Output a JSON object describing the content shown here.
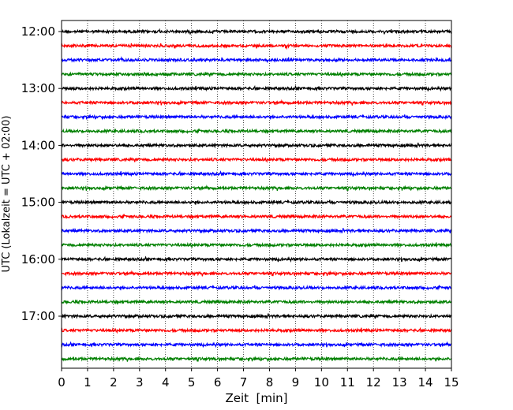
{
  "chart_data": {
    "type": "line",
    "title": "",
    "xlabel": "Zeit  [min]",
    "ylabel": "UTC (Lokalzeit = UTC + 02:00)",
    "xlim": [
      0,
      15
    ],
    "x_ticks": [
      "0",
      "1",
      "2",
      "3",
      "4",
      "5",
      "6",
      "7",
      "8",
      "9",
      "10",
      "11",
      "12",
      "13",
      "14",
      "15"
    ],
    "y_ticks": [
      "12:00",
      "13:00",
      "14:00",
      "15:00",
      "16:00",
      "17:00"
    ],
    "grid": "vertical dotted at each minute",
    "trace_colors": [
      "#000000",
      "#ff0000",
      "#0000ff",
      "#008000"
    ],
    "traces": [
      {
        "start": "12:00",
        "color": "#000000"
      },
      {
        "start": "12:15",
        "color": "#ff0000"
      },
      {
        "start": "12:30",
        "color": "#0000ff"
      },
      {
        "start": "12:45",
        "color": "#008000"
      },
      {
        "start": "13:00",
        "color": "#000000"
      },
      {
        "start": "13:15",
        "color": "#ff0000"
      },
      {
        "start": "13:30",
        "color": "#0000ff"
      },
      {
        "start": "13:45",
        "color": "#008000"
      },
      {
        "start": "14:00",
        "color": "#000000"
      },
      {
        "start": "14:15",
        "color": "#ff0000"
      },
      {
        "start": "14:30",
        "color": "#0000ff"
      },
      {
        "start": "14:45",
        "color": "#008000"
      },
      {
        "start": "15:00",
        "color": "#000000"
      },
      {
        "start": "15:15",
        "color": "#ff0000"
      },
      {
        "start": "15:30",
        "color": "#0000ff"
      },
      {
        "start": "15:45",
        "color": "#008000"
      },
      {
        "start": "16:00",
        "color": "#000000"
      },
      {
        "start": "16:15",
        "color": "#ff0000"
      },
      {
        "start": "16:30",
        "color": "#0000ff"
      },
      {
        "start": "16:45",
        "color": "#008000"
      },
      {
        "start": "17:00",
        "color": "#000000"
      },
      {
        "start": "17:15",
        "color": "#ff0000"
      },
      {
        "start": "17:30",
        "color": "#0000ff"
      },
      {
        "start": "17:45",
        "color": "#008000"
      }
    ]
  }
}
